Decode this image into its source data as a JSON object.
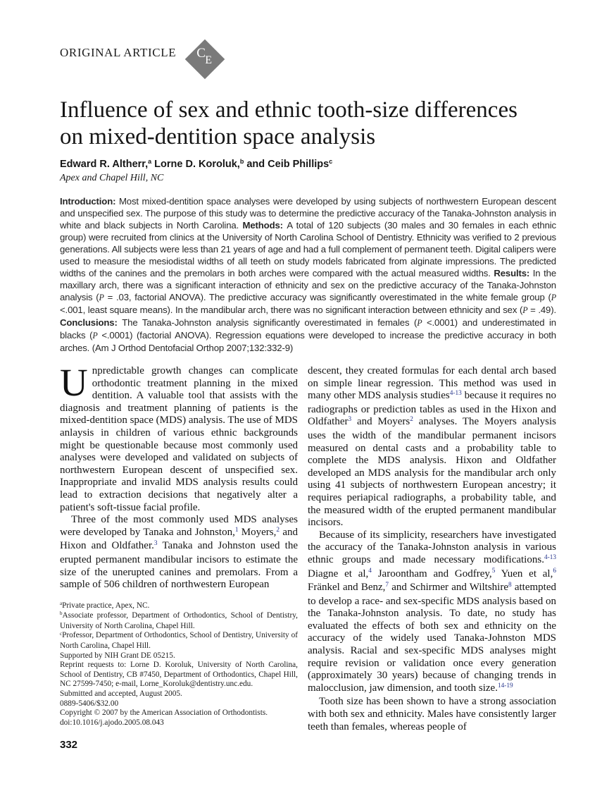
{
  "header": {
    "article_type": "ORIGINAL ARTICLE",
    "ce_badge": {
      "top_letter": "C",
      "bottom_letter": "E"
    },
    "title": "Influence of sex and ethnic tooth-size differences on mixed-dentition space analysis",
    "authors_rich": [
      {
        "t": "Edward R. Altherr,"
      },
      {
        "t": "a",
        "sup": true
      },
      {
        "t": " Lorne D. Koroluk,"
      },
      {
        "t": "b",
        "sup": true
      },
      {
        "t": " and Ceib Phillips"
      },
      {
        "t": "c",
        "sup": true
      }
    ],
    "affiliation": "Apex and Chapel Hill, NC"
  },
  "abstract": {
    "rich": [
      {
        "t": "Introduction: ",
        "b": true
      },
      {
        "t": "Most mixed-dentition space analyses were developed by using subjects of northwestern European descent and unspecified sex. The purpose of this study was to determine the predictive accuracy of the Tanaka-Johnston analysis in white and black subjects in North Carolina. "
      },
      {
        "t": "Methods: ",
        "b": true
      },
      {
        "t": "A total of 120 subjects (30 males and 30 females in each ethnic group) were recruited from clinics at the University of North Carolina School of Dentistry. Ethnicity was verified to 2 previous generations. All subjects were less than 21 years of age and had a full complement of permanent teeth. Digital calipers were used to measure the mesiodistal widths of all teeth on study models fabricated from alginate impressions. The predicted widths of the canines and the premolars in both arches were compared with the actual measured widths. "
      },
      {
        "t": "Results: ",
        "b": true
      },
      {
        "t": "In the maxillary arch, there was a significant interaction of ethnicity and sex on the predictive accuracy of the Tanaka-Johnston analysis ("
      },
      {
        "t": "P",
        "p": true
      },
      {
        "t": " = .03, factorial ANOVA). The predictive accuracy was significantly overestimated in the white female group ("
      },
      {
        "t": "P",
        "p": true
      },
      {
        "t": " <.001, least square means). In the mandibular arch, there was no significant interaction between ethnicity and sex ("
      },
      {
        "t": "P",
        "p": true
      },
      {
        "t": " = .49). "
      },
      {
        "t": "Conclusions: ",
        "b": true
      },
      {
        "t": "The Tanaka-Johnston analysis significantly overestimated in females ("
      },
      {
        "t": "P",
        "p": true
      },
      {
        "t": " <.0001) and underestimated in blacks ("
      },
      {
        "t": "P",
        "p": true
      },
      {
        "t": " <.0001) (factorial ANOVA). Regression equations were developed to increase the predictive accuracy in both arches. (Am J Orthod Dentofacial Orthop 2007;132:332-9)"
      }
    ]
  },
  "body": {
    "left_column": {
      "dropcap": "U",
      "p1": [
        {
          "t": "npredictable growth changes can complicate orthodontic treatment planning in the mixed dentition. A valuable tool that assists with the diagnosis and treatment planning of patients is the mixed-dentition space (MDS) analysis. The use of MDS anlaysis in children of various ethnic backgrounds might be questionable because most commonly used analyses were developed and validated on subjects of northwestern European descent of unspecified sex. Inappropriate and invalid MDS analysis results could lead to extraction decisions that negatively alter a patient's soft-tissue facial profile."
        }
      ],
      "p2": [
        {
          "t": "Three of the most commonly used MDS analyses were developed by Tanaka and Johnston,"
        },
        {
          "t": "1",
          "ref": true
        },
        {
          "t": " Moyers,"
        },
        {
          "t": "2",
          "ref": true
        },
        {
          "t": " and Hixon and Oldfather."
        },
        {
          "t": "3",
          "ref": true
        },
        {
          "t": " Tanaka and Johnston used the erupted permanent mandibular incisors to estimate the size of the unerupted canines and premolars. From a sample of 506 children of northwestern European"
        }
      ]
    },
    "right_column": {
      "p1": [
        {
          "t": "descent, they created formulas for each dental arch based on simple linear regression. This method was used in many other MDS analysis studies"
        },
        {
          "t": "4-13",
          "ref": true
        },
        {
          "t": " because it requires no radiographs or prediction tables as used in the Hixon and Oldfather"
        },
        {
          "t": "3",
          "ref": true
        },
        {
          "t": " and Moyers"
        },
        {
          "t": "2",
          "ref": true
        },
        {
          "t": " analyses. The Moyers analysis uses the width of the mandibular permanent incisors measured on dental casts and a probability table to complete the MDS analysis. Hixon and Oldfather developed an MDS analysis for the mandibular arch only using 41 subjects of northwestern European ancestry; it requires periapical radiographs, a probability table, and the measured width of the erupted permanent mandibular incisors."
        }
      ],
      "p2": [
        {
          "t": "Because of its simplicity, researchers have investigated the accuracy of the Tanaka-Johnston analysis in various ethnic groups and made necessary modifications."
        },
        {
          "t": "4-13",
          "ref": true
        },
        {
          "t": " Diagne et al,"
        },
        {
          "t": "4",
          "ref": true
        },
        {
          "t": " Jaroontham and Godfrey,"
        },
        {
          "t": "5",
          "ref": true
        },
        {
          "t": " Yuen et al,"
        },
        {
          "t": "6",
          "ref": true
        },
        {
          "t": " Fränkel and Benz,"
        },
        {
          "t": "7",
          "ref": true
        },
        {
          "t": " and Schirmer and Wiltshire"
        },
        {
          "t": "8",
          "ref": true
        },
        {
          "t": " attempted to develop a race- and sex-specific MDS analysis based on the Tanaka-Johnston analysis. To date, no study has evaluated the effects of both sex and ethnicity on the accuracy of the widely used Tanaka-Johnston MDS analysis. Racial and sex-specific MDS analyses might require revision or validation once every generation (approximately 30 years) because of changing trends in malocclusion, jaw dimension, and tooth size."
        },
        {
          "t": "14-19",
          "ref": true
        }
      ],
      "p3": [
        {
          "t": "Tooth size has been shown to have a strong association with both sex and ethnicity. Males have consistently larger teeth than females, whereas people of"
        }
      ]
    }
  },
  "footnotes": {
    "notes": [
      [
        {
          "t": "a",
          "sup": true
        },
        {
          "t": "Private practice, Apex, NC."
        }
      ],
      [
        {
          "t": "b",
          "sup": true
        },
        {
          "t": "Associate professor, Department of Orthodontics, School of Dentistry, University of North Carolina, Chapel Hill."
        }
      ],
      [
        {
          "t": "c",
          "sup": true
        },
        {
          "t": "Professor, Department of Orthodontics, School of Dentistry, University of North Carolina, Chapel Hill."
        }
      ],
      [
        {
          "t": "Supported by NIH Grant DE 05215."
        }
      ],
      [
        {
          "t": "Reprint requests to: Lorne D. Koroluk, University of North Carolina, School of Dentistry, CB #7450, Department of Orthodontics, Chapel Hill, NC 27599-7450; e-mail, Lorne_Koroluk@dentistry.unc.edu."
        }
      ],
      [
        {
          "t": "Submitted and accepted, August 2005."
        }
      ],
      [
        {
          "t": "0889-5406/$32.00"
        }
      ],
      [
        {
          "t": "Copyright © 2007 by the American Association of Orthodontists."
        }
      ],
      [
        {
          "t": "doi:10.1016/j.ajodo.2005.08.043"
        }
      ]
    ]
  },
  "footer": {
    "page_number": "332"
  }
}
